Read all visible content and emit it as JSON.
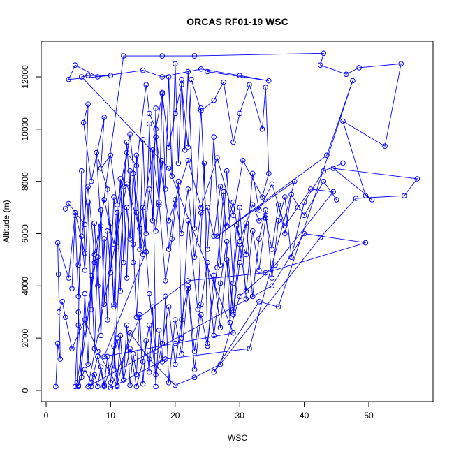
{
  "chart_data": {
    "type": "line",
    "title": "ORCAS RF01-19 WSC",
    "xlabel": "WSC",
    "ylabel": "Altitude (m)",
    "xlim": [
      0,
      60
    ],
    "ylim": [
      0,
      13000
    ],
    "xticks": [
      0,
      10,
      20,
      30,
      40,
      50
    ],
    "yticks": [
      0,
      2000,
      4000,
      6000,
      8000,
      10000,
      12000
    ],
    "grid": false,
    "line_color": "#0000ff",
    "marker": "open-circle",
    "series": [
      {
        "points": [
          [
            5,
            150
          ],
          [
            12,
            12800
          ],
          [
            18,
            12800
          ],
          [
            23,
            12800
          ],
          [
            43,
            12900
          ],
          [
            42.5,
            12450
          ],
          [
            46.5,
            12100
          ],
          [
            48.5,
            12350
          ],
          [
            55,
            12500
          ],
          [
            52.5,
            9350
          ],
          [
            46,
            10300
          ],
          [
            49.5,
            7450
          ],
          [
            50.5,
            7300
          ],
          [
            44.5,
            8500
          ],
          [
            57.5,
            8100
          ],
          [
            55.5,
            7450
          ],
          [
            48,
            7350
          ],
          [
            42.5,
            5850
          ],
          [
            26,
            700
          ],
          [
            33,
            3400
          ],
          [
            36,
            3200
          ],
          [
            47.5,
            11850
          ],
          [
            43.5,
            9000
          ],
          [
            26.5,
            5900
          ],
          [
            38.5,
            8000
          ],
          [
            31.5,
            1600
          ],
          [
            18.5,
            1200
          ],
          [
            10,
            100
          ],
          [
            14.5,
            2800
          ],
          [
            22,
            4200
          ],
          [
            34,
            4500
          ],
          [
            49.5,
            5650
          ],
          [
            40,
            6000
          ],
          [
            35,
            4000
          ],
          [
            6.5,
            150
          ],
          [
            12.5,
            7900
          ],
          [
            15.5,
            5300
          ],
          [
            9,
            1300
          ],
          [
            20,
            1800
          ],
          [
            29,
            2200
          ],
          [
            19,
            8500
          ],
          [
            5.5,
            12000
          ],
          [
            6.5,
            12050
          ],
          [
            10,
            12050
          ],
          [
            3.5,
            11900
          ],
          [
            4.5,
            12450
          ],
          [
            8,
            12000
          ],
          [
            15,
            12250
          ],
          [
            18,
            12000
          ],
          [
            24,
            12300
          ],
          [
            30,
            12050
          ],
          [
            34.5,
            11850
          ],
          [
            25,
            12200
          ]
        ]
      },
      {
        "points": [
          [
            1.5,
            150
          ],
          [
            1.8,
            1800
          ],
          [
            2.2,
            1200
          ],
          [
            1.9,
            4450
          ],
          [
            1.8,
            5650
          ],
          [
            3.5,
            4300
          ],
          [
            4.5,
            6800
          ],
          [
            6,
            5250
          ],
          [
            5.5,
            8400
          ],
          [
            5,
            2500
          ],
          [
            4.8,
            300
          ],
          [
            7.5,
            4900
          ],
          [
            8.5,
            6300
          ],
          [
            7.8,
            9100
          ],
          [
            9.5,
            7700
          ],
          [
            10.5,
            3300
          ],
          [
            11,
            6800
          ],
          [
            10.5,
            800
          ],
          [
            12.5,
            9500
          ],
          [
            13.5,
            5600
          ],
          [
            14,
            2800
          ],
          [
            15,
            7000
          ],
          [
            16,
            3700
          ],
          [
            17,
            1500
          ],
          [
            16.5,
            9200
          ],
          [
            17.5,
            7200
          ],
          [
            18.5,
            4200
          ],
          [
            19.5,
            5800
          ],
          [
            20.5,
            8000
          ],
          [
            21,
            2000
          ],
          [
            22,
            6500
          ],
          [
            23.5,
            3100
          ],
          [
            24.5,
            8700
          ],
          [
            25,
            1800
          ],
          [
            26.5,
            4700
          ],
          [
            27.5,
            7600
          ],
          [
            28.5,
            2600
          ],
          [
            29.5,
            6300
          ],
          [
            31,
            5200
          ],
          [
            32,
            8300
          ],
          [
            33,
            6900
          ],
          [
            35,
            7900
          ],
          [
            37,
            6300
          ],
          [
            39,
            7000
          ],
          [
            41,
            7700
          ],
          [
            44.5,
            7600
          ],
          [
            35.5,
            4800
          ],
          [
            30,
            3600
          ],
          [
            27,
            1000
          ],
          [
            23,
            500
          ],
          [
            20,
            200
          ],
          [
            16,
            1200
          ],
          [
            13,
            2200
          ],
          [
            11,
            200
          ],
          [
            8,
            1500
          ],
          [
            6,
            2700
          ],
          [
            4,
            1600
          ],
          [
            3,
            2800
          ],
          [
            2.5,
            3400
          ],
          [
            2,
            3000
          ]
        ]
      },
      {
        "points": [
          [
            3,
            6950
          ],
          [
            3.5,
            7150
          ],
          [
            6,
            6350
          ],
          [
            6.5,
            10950
          ],
          [
            5.8,
            10250
          ],
          [
            7,
            8000
          ],
          [
            9,
            10450
          ],
          [
            8.5,
            8500
          ],
          [
            10,
            9000
          ],
          [
            11,
            7100
          ],
          [
            12.5,
            9100
          ],
          [
            14,
            8600
          ],
          [
            15.5,
            11700
          ],
          [
            16,
            10600
          ],
          [
            17,
            10000
          ],
          [
            18,
            11350
          ],
          [
            19,
            9300
          ],
          [
            20,
            10600
          ],
          [
            21,
            11700
          ],
          [
            22,
            9300
          ],
          [
            22.5,
            11900
          ],
          [
            24,
            10700
          ],
          [
            26,
            11100
          ],
          [
            27.5,
            11800
          ],
          [
            29,
            9500
          ],
          [
            30,
            10600
          ],
          [
            31.5,
            11700
          ],
          [
            33.5,
            10000
          ],
          [
            34,
            11600
          ],
          [
            34.5,
            8300
          ],
          [
            33.5,
            7400
          ],
          [
            30.5,
            8800
          ],
          [
            29,
            6700
          ],
          [
            26.5,
            8900
          ],
          [
            24,
            7000
          ],
          [
            22,
            8800
          ],
          [
            19,
            6500
          ],
          [
            17,
            9700
          ],
          [
            14.5,
            6200
          ],
          [
            13,
            9800
          ],
          [
            10.5,
            5600
          ],
          [
            9,
            7300
          ],
          [
            7.5,
            5200
          ],
          [
            6.5,
            7800
          ],
          [
            5,
            4800
          ]
        ]
      },
      {
        "points": [
          [
            7,
            150
          ],
          [
            7.5,
            600
          ],
          [
            8,
            150
          ],
          [
            8.5,
            900
          ],
          [
            9,
            200
          ],
          [
            9.5,
            1300
          ],
          [
            10,
            300
          ],
          [
            10.5,
            1700
          ],
          [
            11,
            150
          ],
          [
            11.5,
            2100
          ],
          [
            12,
            400
          ],
          [
            12.5,
            2500
          ],
          [
            13,
            200
          ],
          [
            13.5,
            1400
          ],
          [
            14,
            600
          ],
          [
            14.5,
            2900
          ],
          [
            15,
            250
          ],
          [
            15.5,
            1900
          ],
          [
            16,
            700
          ],
          [
            16.5,
            3200
          ],
          [
            17,
            150
          ],
          [
            17.5,
            2300
          ],
          [
            18,
            1100
          ],
          [
            18.5,
            3600
          ],
          [
            19,
            300
          ],
          [
            20,
            2700
          ],
          [
            21,
            1400
          ],
          [
            22,
            3900
          ],
          [
            23,
            800
          ],
          [
            24,
            2900
          ],
          [
            25,
            1700
          ],
          [
            26,
            4400
          ],
          [
            27,
            2400
          ],
          [
            28,
            5000
          ],
          [
            29,
            3000
          ],
          [
            30,
            5600
          ],
          [
            31,
            3800
          ],
          [
            32,
            6100
          ],
          [
            33,
            4600
          ],
          [
            34,
            6600
          ],
          [
            35,
            5400
          ],
          [
            36,
            7100
          ],
          [
            37,
            6000
          ],
          [
            38,
            7500
          ],
          [
            40,
            6700
          ],
          [
            43,
            8000
          ],
          [
            45,
            7300
          ]
        ]
      },
      {
        "points": [
          [
            4.5,
            150
          ],
          [
            5,
            3000
          ],
          [
            5.5,
            500
          ],
          [
            6,
            3700
          ],
          [
            6.5,
            1000
          ],
          [
            7,
            4400
          ],
          [
            7.5,
            1600
          ],
          [
            8,
            5100
          ],
          [
            8.5,
            2100
          ],
          [
            9,
            5800
          ],
          [
            9.5,
            2700
          ],
          [
            10,
            6400
          ],
          [
            10.5,
            3200
          ],
          [
            11,
            7100
          ],
          [
            11.5,
            3800
          ],
          [
            12,
            7800
          ],
          [
            12.5,
            4300
          ],
          [
            13,
            8400
          ],
          [
            13.5,
            4900
          ],
          [
            14,
            9000
          ],
          [
            14.5,
            5400
          ],
          [
            15,
            9600
          ],
          [
            15.5,
            6000
          ],
          [
            16,
            10200
          ],
          [
            16.5,
            6500
          ],
          [
            17,
            10800
          ],
          [
            17.5,
            7100
          ],
          [
            18,
            11400
          ],
          [
            18.5,
            7700
          ],
          [
            19,
            12000
          ],
          [
            19.5,
            8200
          ],
          [
            20,
            12500
          ],
          [
            20.5,
            8700
          ],
          [
            21,
            11900
          ],
          [
            21.5,
            9200
          ],
          [
            22,
            12200
          ],
          [
            23,
            6200
          ],
          [
            24,
            10800
          ],
          [
            25,
            5400
          ],
          [
            26,
            9700
          ],
          [
            27,
            4800
          ],
          [
            28,
            8400
          ],
          [
            29,
            4100
          ],
          [
            30,
            7000
          ],
          [
            31,
            3500
          ]
        ]
      },
      {
        "points": [
          [
            5,
            200
          ],
          [
            6,
            800
          ],
          [
            7,
            300
          ],
          [
            8,
            1300
          ],
          [
            9,
            150
          ],
          [
            10,
            900
          ],
          [
            11,
            2000
          ],
          [
            12,
            400
          ],
          [
            13,
            1600
          ],
          [
            14,
            150
          ],
          [
            15,
            1100
          ],
          [
            16,
            2500
          ],
          [
            17,
            600
          ],
          [
            18,
            1800
          ],
          [
            19,
            3200
          ],
          [
            20,
            1000
          ],
          [
            21,
            2700
          ],
          [
            22,
            4000
          ],
          [
            23,
            1500
          ],
          [
            24,
            3300
          ],
          [
            25,
            4900
          ],
          [
            26,
            2100
          ],
          [
            27,
            4100
          ],
          [
            28,
            5700
          ],
          [
            29,
            2900
          ],
          [
            30,
            4900
          ],
          [
            31,
            6400
          ],
          [
            32,
            3600
          ],
          [
            33,
            5800
          ],
          [
            34,
            6900
          ],
          [
            35,
            4300
          ],
          [
            36,
            6500
          ],
          [
            37,
            7400
          ],
          [
            38,
            5100
          ],
          [
            40,
            7200
          ],
          [
            43,
            8400
          ],
          [
            46,
            8700
          ]
        ]
      },
      {
        "points": [
          [
            4,
            3900
          ],
          [
            4.5,
            6700
          ],
          [
            5,
            3600
          ],
          [
            5.5,
            5900
          ],
          [
            6,
            4600
          ],
          [
            6.5,
            7200
          ],
          [
            7,
            3100
          ],
          [
            7.5,
            6400
          ],
          [
            8,
            4000
          ],
          [
            8.5,
            6900
          ],
          [
            9,
            3300
          ],
          [
            9.5,
            6100
          ],
          [
            10,
            4500
          ],
          [
            10.5,
            7400
          ],
          [
            11,
            5500
          ],
          [
            11.5,
            8100
          ],
          [
            12,
            4900
          ],
          [
            12.5,
            7000
          ],
          [
            13,
            5800
          ],
          [
            13.5,
            8300
          ],
          [
            14,
            6800
          ],
          [
            15,
            5200
          ],
          [
            16,
            7700
          ],
          [
            17,
            6100
          ],
          [
            18,
            8800
          ],
          [
            19,
            5400
          ],
          [
            20,
            7300
          ],
          [
            21,
            6000
          ],
          [
            22,
            7700
          ],
          [
            23,
            5100
          ],
          [
            24,
            6800
          ],
          [
            25,
            7000
          ],
          [
            26,
            5900
          ],
          [
            27,
            7800
          ],
          [
            28,
            6300
          ],
          [
            29,
            7200
          ],
          [
            30,
            5700
          ],
          [
            32,
            7100
          ],
          [
            33,
            6500
          ],
          [
            34,
            6700
          ]
        ]
      }
    ]
  }
}
